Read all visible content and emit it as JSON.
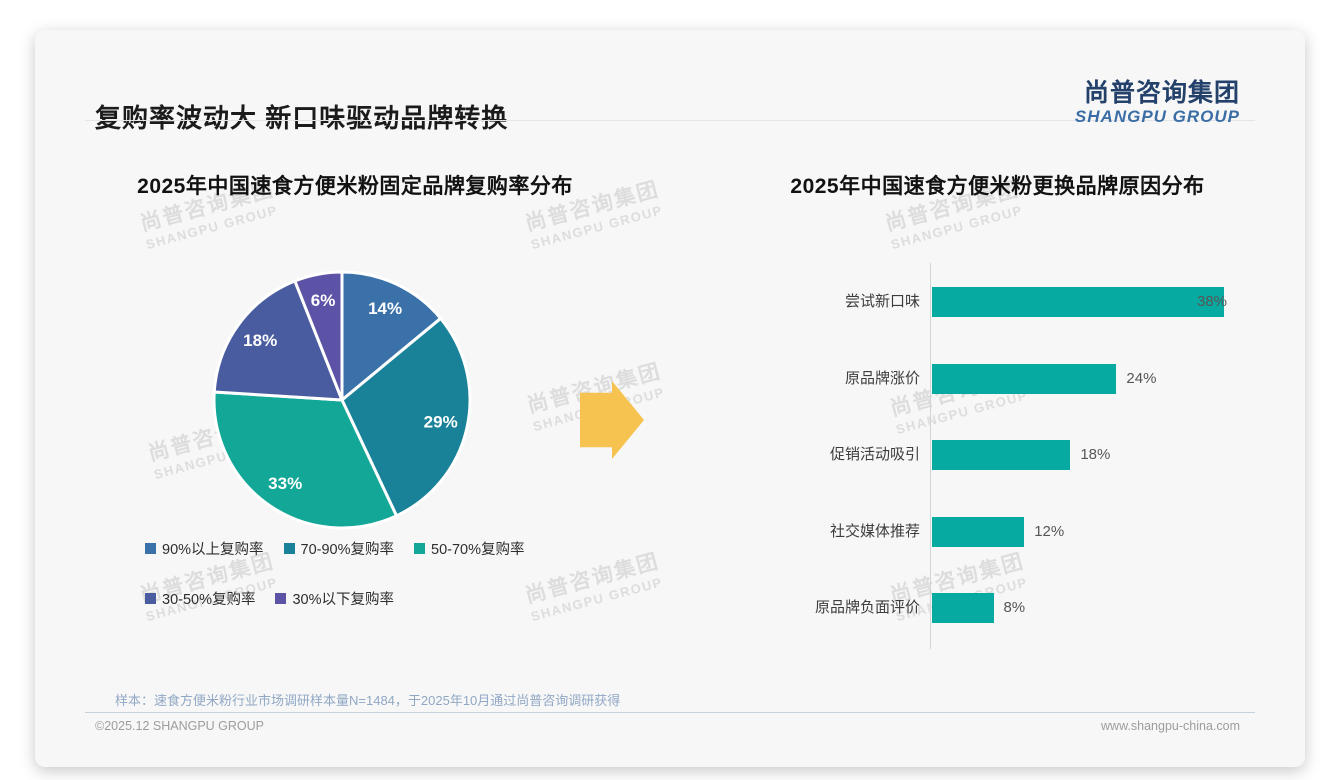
{
  "page": {
    "main_title": "复购率波动大 新口味驱动品牌转换",
    "logo": {
      "cn": "尚普咨询集团",
      "en": "SHANGPU GROUP"
    },
    "watermark": {
      "line1": "尚普咨询集团",
      "line2": "SHANGPU GROUP"
    },
    "arrow_color": "#F6C350",
    "footnote": "样本：速食方便米粉行业市场调研样本量N=1484，于2025年10月通过尚普咨询调研获得",
    "footer_left": "©2025.12 SHANGPU GROUP",
    "footer_right": "www.shangpu-china.com"
  },
  "chart_data": [
    {
      "type": "pie",
      "title": "2025年中国速食方便米粉固定品牌复购率分布",
      "categories": [
        "90%以上复购率",
        "70-90%复购率",
        "50-70%复购率",
        "30-50%复购率",
        "30%以下复购率"
      ],
      "values": [
        14,
        29,
        33,
        18,
        6
      ],
      "labels": [
        "14%",
        "29%",
        "33%",
        "18%",
        "6%"
      ],
      "unit": "%",
      "colors": [
        "#3A71A8",
        "#1A8298",
        "#13A797",
        "#4A5CA0",
        "#5C53A6"
      ],
      "start_angle_deg": 0,
      "direction": "clockwise",
      "legend_position": "bottom",
      "slice_border_color": "#ffffff"
    },
    {
      "type": "bar",
      "orientation": "horizontal",
      "title": "2025年中国速食方便米粉更换品牌原因分布",
      "categories": [
        "尝试新口味",
        "原品牌涨价",
        "促销活动吸引",
        "社交媒体推荐",
        "原品牌负面评价"
      ],
      "values": [
        38,
        24,
        18,
        12,
        8
      ],
      "value_labels": [
        "38%",
        "24%",
        "18%",
        "12%",
        "8%"
      ],
      "unit": "%",
      "bar_color": "#06AAA1",
      "xlim": [
        0,
        40
      ],
      "grid": false,
      "legend": false
    }
  ]
}
